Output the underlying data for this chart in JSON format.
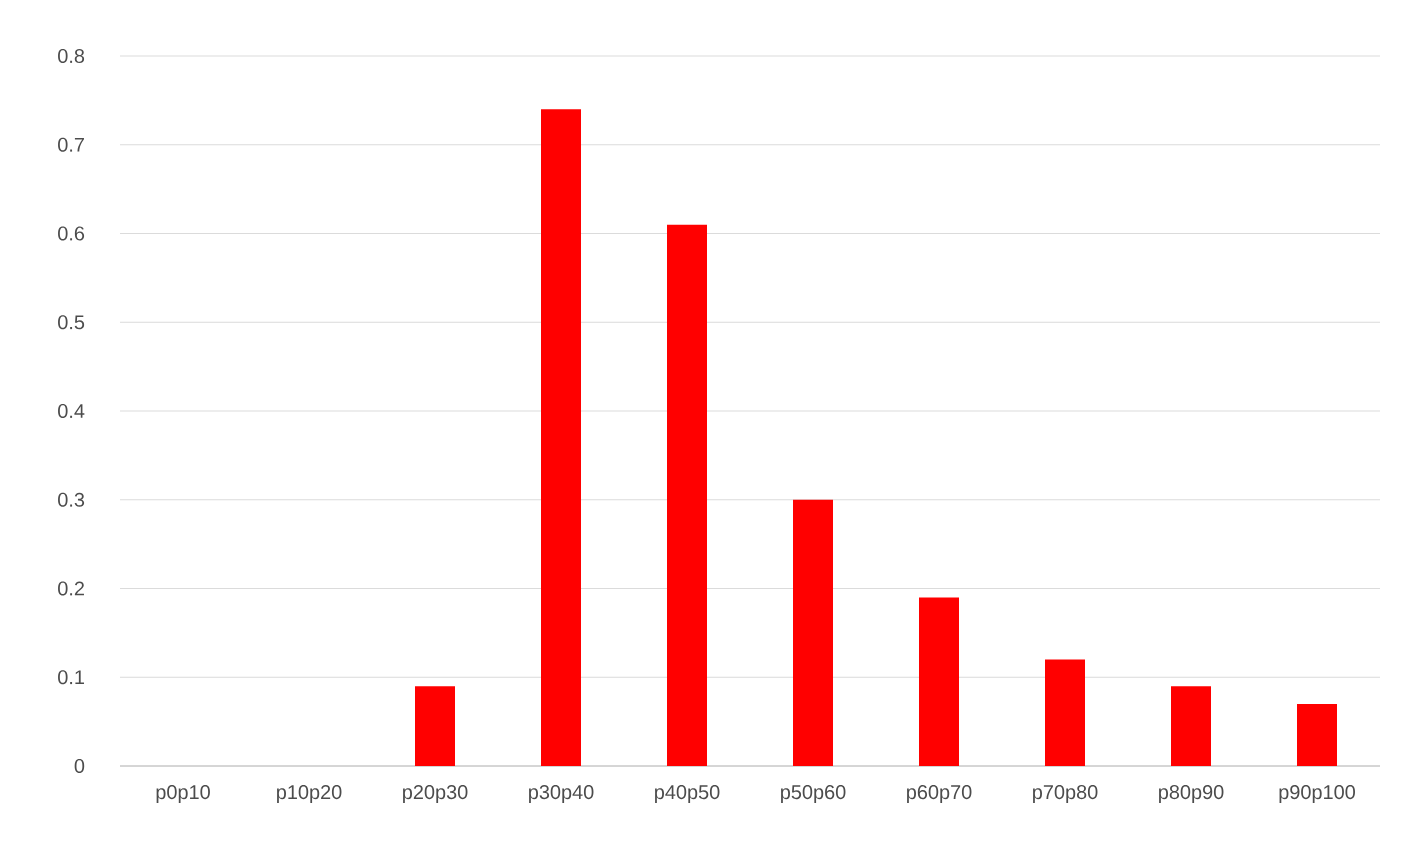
{
  "chart_data": {
    "type": "bar",
    "categories": [
      "p0p10",
      "p10p20",
      "p20p30",
      "p30p40",
      "p40p50",
      "p50p60",
      "p60p70",
      "p70p80",
      "p80p90",
      "p90p100"
    ],
    "values": [
      0,
      0,
      0.09,
      0.74,
      0.61,
      0.3,
      0.19,
      0.12,
      0.09,
      0.07
    ],
    "color": "#ff0000",
    "ylim": [
      0,
      0.8
    ],
    "yticks": [
      0,
      0.1,
      0.2,
      0.3,
      0.4,
      0.5,
      0.6,
      0.7,
      0.8
    ],
    "grid": "y"
  }
}
